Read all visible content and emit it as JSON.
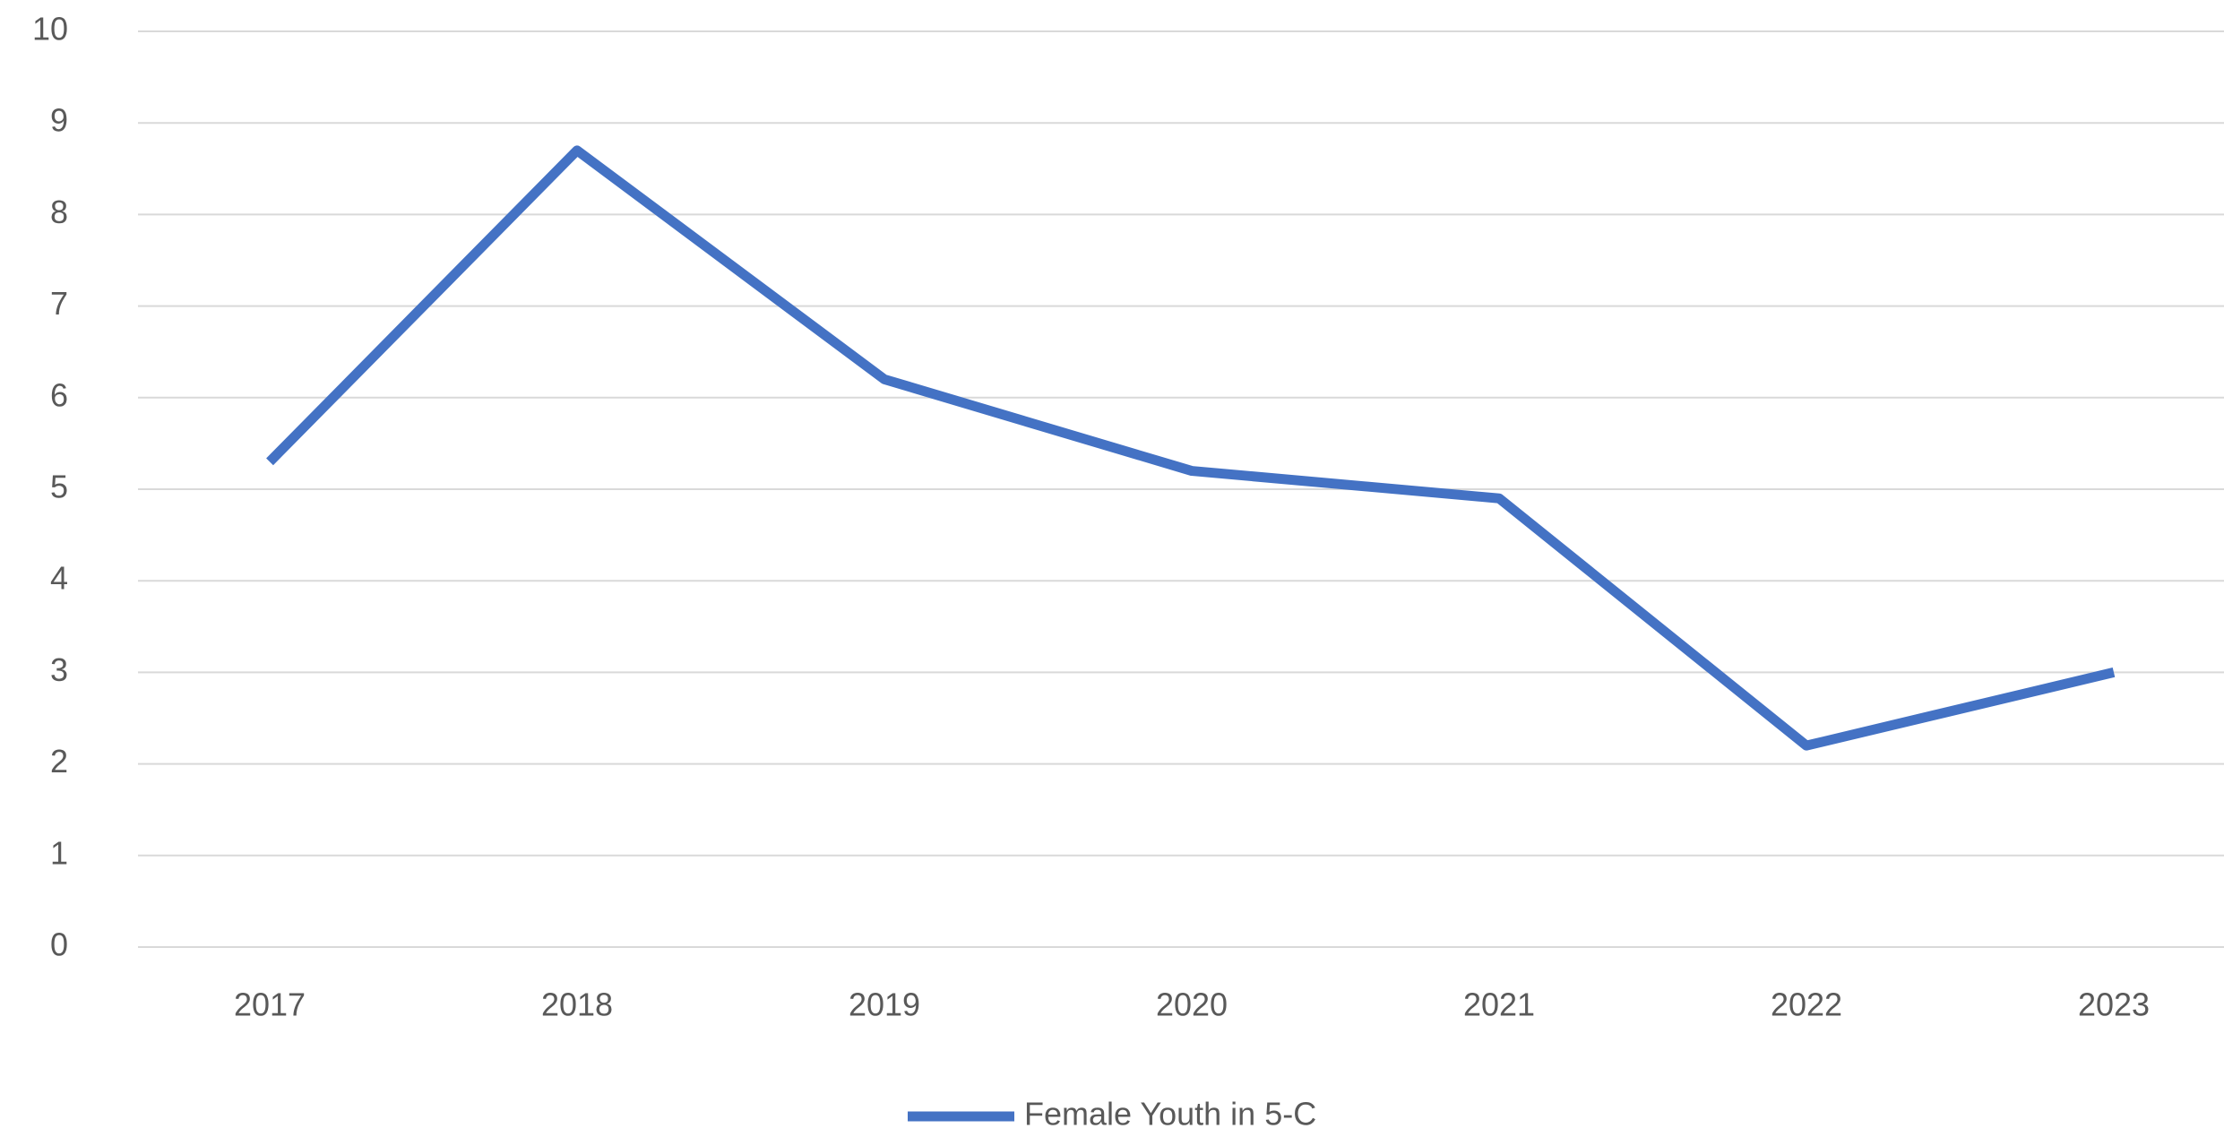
{
  "chart_data": {
    "type": "line",
    "categories": [
      "2017",
      "2018",
      "2019",
      "2020",
      "2021",
      "2022",
      "2023"
    ],
    "series": [
      {
        "name": "Female Youth in 5-C",
        "color": "#4472c4",
        "values": [
          5.3,
          8.7,
          6.2,
          5.2,
          4.9,
          2.2,
          3.0
        ]
      }
    ],
    "ylim": [
      0,
      10
    ],
    "yticks": [
      0,
      1,
      2,
      3,
      4,
      5,
      6,
      7,
      8,
      9,
      10
    ],
    "grid": true,
    "legend": "bottom"
  }
}
